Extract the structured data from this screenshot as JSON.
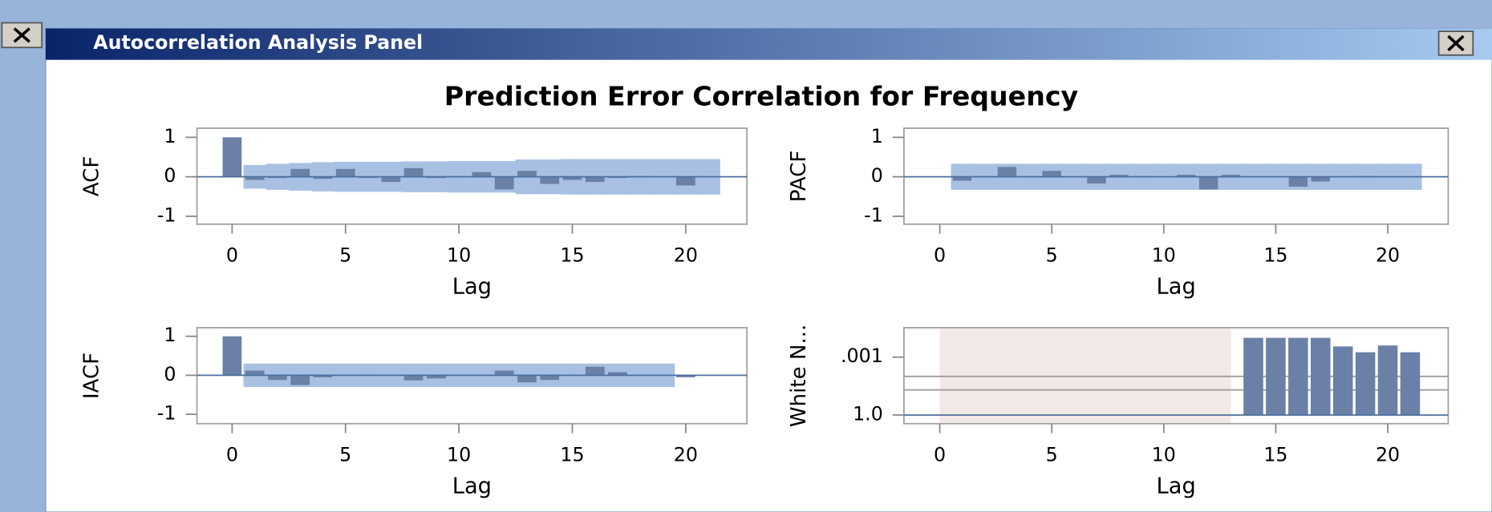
{
  "window": {
    "title": "Autocorrelation Analysis Panel"
  },
  "panel_title": "Prediction Error Correlation for Frequency",
  "chart_data": [
    {
      "type": "bar",
      "ylabel": "ACF",
      "xlabel": "Lag",
      "x": [
        0,
        1,
        2,
        3,
        4,
        5,
        6,
        7,
        8,
        9,
        10,
        11,
        12,
        13,
        14,
        15,
        16,
        17,
        18,
        19,
        20
      ],
      "values": [
        1,
        -0.08,
        -0.03,
        0.2,
        -0.05,
        0.2,
        -0.03,
        -0.13,
        0.22,
        -0.03,
        0.02,
        0.12,
        -0.32,
        0.15,
        -0.18,
        -0.08,
        -0.13,
        -0.03,
        0.02,
        0,
        -0.22
      ],
      "color": "#6a80a6",
      "limits": {
        "x": [
          1,
          2,
          3,
          4,
          5,
          6,
          7,
          8,
          9,
          10,
          11,
          12,
          13,
          14,
          15,
          16,
          17,
          18,
          19,
          20,
          21
        ],
        "upper": [
          0.3,
          0.33,
          0.35,
          0.37,
          0.38,
          0.38,
          0.38,
          0.39,
          0.39,
          0.4,
          0.4,
          0.4,
          0.44,
          0.44,
          0.45,
          0.45,
          0.45,
          0.45,
          0.45,
          0.45,
          0.45
        ],
        "lower": [
          -0.3,
          -0.33,
          -0.35,
          -0.37,
          -0.38,
          -0.38,
          -0.38,
          -0.39,
          -0.39,
          -0.4,
          -0.4,
          -0.4,
          -0.44,
          -0.44,
          -0.45,
          -0.45,
          -0.45,
          -0.45,
          -0.45,
          -0.45,
          -0.45
        ],
        "color": "#a8c0e2"
      },
      "baseline": 0,
      "xlim": [
        -1.55,
        22.7
      ],
      "ylim": [
        -1.2,
        1.23
      ],
      "xticks": [
        0,
        5,
        10,
        15,
        20
      ],
      "yticks": [
        -1,
        0,
        1
      ]
    },
    {
      "type": "bar",
      "ylabel": "PACF",
      "xlabel": "Lag",
      "x": [
        1,
        2,
        3,
        4,
        5,
        6,
        7,
        8,
        9,
        10,
        11,
        12,
        13,
        14,
        15,
        16,
        17,
        18,
        19,
        20,
        21
      ],
      "values": [
        -0.1,
        0.02,
        0.25,
        0.02,
        0.15,
        0,
        -0.17,
        0.05,
        0.02,
        0,
        0.05,
        -0.32,
        0.05,
        0,
        0,
        -0.25,
        -0.12,
        0,
        0.02,
        0,
        0
      ],
      "color": "#6a80a6",
      "limits": {
        "x": [
          1,
          2,
          3,
          4,
          5,
          6,
          7,
          8,
          9,
          10,
          11,
          12,
          13,
          14,
          15,
          16,
          17,
          18,
          19,
          20,
          21
        ],
        "upper": [
          0.33,
          0.33,
          0.33,
          0.33,
          0.33,
          0.33,
          0.33,
          0.33,
          0.33,
          0.33,
          0.33,
          0.33,
          0.33,
          0.33,
          0.33,
          0.33,
          0.33,
          0.33,
          0.33,
          0.33,
          0.33
        ],
        "lower": [
          -0.33,
          -0.33,
          -0.33,
          -0.33,
          -0.33,
          -0.33,
          -0.33,
          -0.33,
          -0.33,
          -0.33,
          -0.33,
          -0.33,
          -0.33,
          -0.33,
          -0.33,
          -0.33,
          -0.33,
          -0.33,
          -0.33,
          -0.33,
          -0.33
        ],
        "color": "#a8c0e2"
      },
      "baseline": 0,
      "xlim": [
        -1.6,
        22.7
      ],
      "ylim": [
        -1.2,
        1.23
      ],
      "xticks": [
        0,
        5,
        10,
        15,
        20
      ],
      "yticks": [
        -1,
        0,
        1
      ]
    },
    {
      "type": "bar",
      "ylabel": "IACF",
      "xlabel": "Lag",
      "x": [
        0,
        1,
        2,
        3,
        4,
        5,
        6,
        7,
        8,
        9,
        10,
        11,
        12,
        13,
        14,
        15,
        16,
        17,
        18,
        19,
        20
      ],
      "values": [
        1,
        0.12,
        -0.12,
        -0.25,
        -0.05,
        0,
        0.02,
        0,
        -0.13,
        -0.08,
        0,
        0,
        0.12,
        -0.18,
        -0.12,
        0.02,
        0.22,
        0.08,
        0,
        0,
        -0.05
      ],
      "color": "#6a80a6",
      "limits": {
        "x": [
          1,
          2,
          3,
          4,
          5,
          6,
          7,
          8,
          9,
          10,
          11,
          12,
          13,
          14,
          15,
          16,
          17,
          18,
          19
        ],
        "upper": [
          0.3,
          0.3,
          0.3,
          0.3,
          0.3,
          0.3,
          0.3,
          0.3,
          0.3,
          0.3,
          0.3,
          0.3,
          0.3,
          0.3,
          0.3,
          0.3,
          0.3,
          0.3,
          0.3
        ],
        "lower": [
          -0.3,
          -0.3,
          -0.3,
          -0.3,
          -0.3,
          -0.3,
          -0.3,
          -0.3,
          -0.3,
          -0.3,
          -0.3,
          -0.3,
          -0.3,
          -0.3,
          -0.3,
          -0.3,
          -0.3,
          -0.3,
          -0.3
        ],
        "color": "#a8c0e2"
      },
      "baseline": 0,
      "xlim": [
        -1.55,
        22.7
      ],
      "ylim": [
        -1.24,
        1.22
      ],
      "xticks": [
        0,
        5,
        10,
        15,
        20
      ],
      "yticks": [
        -1,
        0,
        1
      ]
    },
    {
      "type": "bar",
      "ylabel": "White N...",
      "xlabel": "Lag",
      "x": [
        14,
        15,
        16,
        17,
        18,
        19,
        20,
        21
      ],
      "values": [
        0.0001,
        0.0001,
        0.0001,
        0.0001,
        0.00028,
        0.00056,
        0.00025,
        0.00056
      ],
      "color": "#6a80a6",
      "log_scale": true,
      "baseline": 1,
      "reference_lines": [
        0.01,
        0.05
      ],
      "shaded_xrange": [
        0,
        13
      ],
      "shade_color": "#f2e9e6",
      "xlim": [
        -1.6,
        22.7
      ],
      "ylim": [
        2.8,
        3e-05
      ],
      "xticks": [
        0,
        5,
        10,
        15,
        20
      ],
      "yticks": [
        {
          "value": 0.001,
          "label": ".001"
        },
        {
          "value": 1,
          "label": "1.0"
        }
      ]
    }
  ]
}
